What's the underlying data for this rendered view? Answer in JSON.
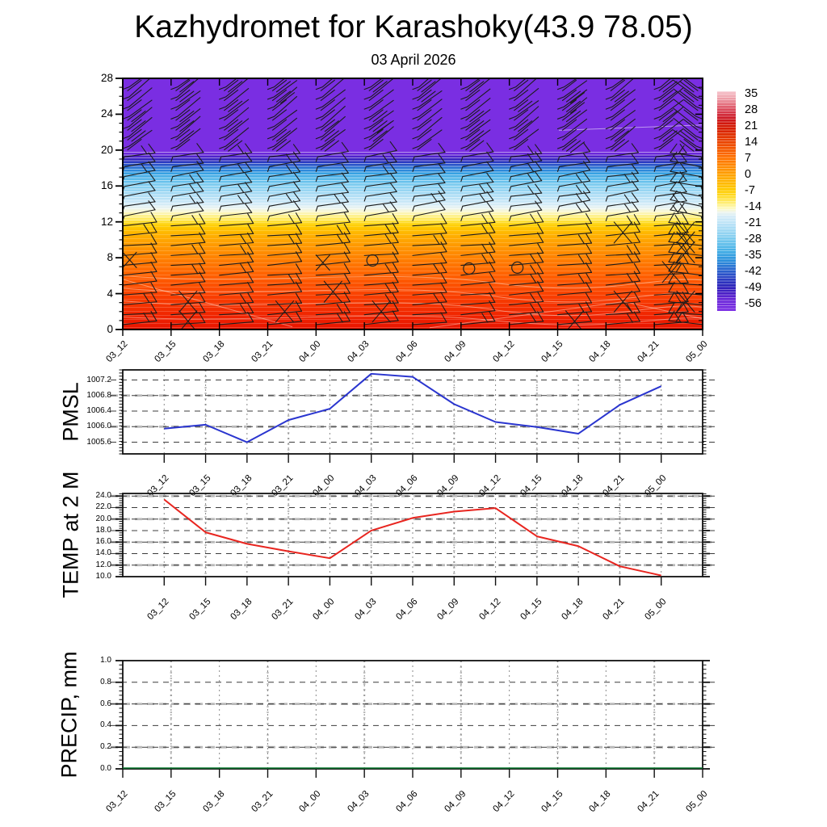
{
  "title": "Kazhydromet for Karashoky(43.9 78.05)",
  "subtitle": "03 April 2026",
  "time_labels": [
    "03_12",
    "03_15",
    "03_18",
    "03_21",
    "04_00",
    "04_03",
    "04_06",
    "04_09",
    "04_12",
    "04_15",
    "04_18",
    "04_21",
    "05_00"
  ],
  "chart_data": [
    {
      "type": "heatmap",
      "name": "temperature-height-cross-section",
      "x_labels": [
        "03_12",
        "03_15",
        "03_18",
        "03_21",
        "04_00",
        "04_03",
        "04_06",
        "04_09",
        "04_12",
        "04_15",
        "04_18",
        "04_21",
        "05_00"
      ],
      "y_ticks": [
        0,
        4,
        8,
        12,
        16,
        20,
        24,
        28
      ],
      "y_range": [
        0,
        28
      ],
      "grid": false,
      "legend_position": "right-colorbar",
      "colorbar_ticks": [
        "35",
        "28",
        "21",
        "14",
        "7",
        "0",
        "-7",
        "-14",
        "-21",
        "-28",
        "-35",
        "-42",
        "-49",
        "-56"
      ],
      "fill_gradient_stops": [
        [
          0,
          "#7a2ee2"
        ],
        [
          28.9,
          "#7a2ee2"
        ],
        [
          30.4,
          "#6426d6"
        ],
        [
          31.8,
          "#3d1fc0"
        ],
        [
          32.9,
          "#2b2cbd"
        ],
        [
          34.3,
          "#2a52c9"
        ],
        [
          36.1,
          "#2b7ed7"
        ],
        [
          37.9,
          "#36a2e2"
        ],
        [
          40,
          "#58b9ea"
        ],
        [
          42.9,
          "#83cef0"
        ],
        [
          46.4,
          "#abdcf5"
        ],
        [
          50,
          "#d2ebf8"
        ],
        [
          51.8,
          "#ecf4ef"
        ],
        [
          53.2,
          "#fbf7c8"
        ],
        [
          55,
          "#fff07e"
        ],
        [
          56.8,
          "#ffe23a"
        ],
        [
          58.9,
          "#ffcc00"
        ],
        [
          61.8,
          "#ffb400"
        ],
        [
          66.1,
          "#ff9c00"
        ],
        [
          71.4,
          "#ff8200"
        ],
        [
          78.6,
          "#ff6000"
        ],
        [
          85.7,
          "#fa4300"
        ],
        [
          92.9,
          "#f22a00"
        ],
        [
          100,
          "#e81300"
        ]
      ],
      "colorbar_gradient_stops": [
        [
          0,
          "#f6c3cb"
        ],
        [
          3,
          "#efa3ad"
        ],
        [
          6,
          "#e4707e"
        ],
        [
          9,
          "#d84052"
        ],
        [
          12,
          "#cd1b28"
        ],
        [
          16,
          "#d31800"
        ],
        [
          20,
          "#e03000"
        ],
        [
          25,
          "#f05000"
        ],
        [
          30,
          "#ff7000"
        ],
        [
          35,
          "#ff8f00"
        ],
        [
          40,
          "#ffae00"
        ],
        [
          45,
          "#ffcb00"
        ],
        [
          48,
          "#ffdd2e"
        ],
        [
          51,
          "#ffef7a"
        ],
        [
          53.5,
          "#fdf9c4"
        ],
        [
          55,
          "#eef5ee"
        ],
        [
          57,
          "#d5ecf8"
        ],
        [
          61,
          "#b4e0f6"
        ],
        [
          65,
          "#90d3f1"
        ],
        [
          69,
          "#67c2ec"
        ],
        [
          73,
          "#41ade5"
        ],
        [
          77,
          "#2b90dc"
        ],
        [
          81,
          "#2a68cf"
        ],
        [
          85,
          "#2b42c4"
        ],
        [
          89,
          "#2b21b9"
        ],
        [
          92,
          "#4a1fc6"
        ],
        [
          95,
          "#6b28d9"
        ],
        [
          100,
          "#7c2fe4"
        ]
      ],
      "wind_barbs": {
        "columns": 13,
        "rows": 25,
        "calm_circles": [
          {
            "col": 5,
            "level": 7.7
          },
          {
            "col": 7,
            "level": 6.8
          },
          {
            "col": 8,
            "level": 6.9
          }
        ],
        "crosses": [
          {
            "col": 0,
            "level": 7.8
          },
          {
            "col": 4,
            "level": 7.5
          }
        ]
      }
    },
    {
      "type": "line",
      "name": "pmsl",
      "ylabel": "PMSL",
      "x": [
        "03_12",
        "03_15",
        "03_18",
        "03_21",
        "04_00",
        "04_03",
        "04_06",
        "04_09",
        "04_12",
        "04_15",
        "04_18",
        "04_21",
        "05_00"
      ],
      "values": [
        1005.95,
        1006.05,
        1005.6,
        1006.17,
        1006.46,
        1007.36,
        1007.28,
        1006.58,
        1006.12,
        1005.99,
        1005.82,
        1006.56,
        1007.04
      ],
      "y_ticks": [
        1005.6,
        1006.0,
        1006.4,
        1006.8,
        1007.2
      ],
      "y_tick_labels": [
        "1005.6",
        "1006.0",
        "1006.4",
        "1006.8",
        "1007.2"
      ],
      "y_range": [
        1005.3,
        1007.46
      ],
      "grid": true,
      "line_color": "#2a35cf"
    },
    {
      "type": "line",
      "name": "temp-2m",
      "ylabel": "TEMP at 2 M",
      "x": [
        "03_12",
        "03_15",
        "03_18",
        "03_21",
        "04_00",
        "04_03",
        "04_06",
        "04_09",
        "04_12",
        "04_15",
        "04_18",
        "04_21",
        "05_00"
      ],
      "values": [
        23.4,
        17.7,
        15.7,
        14.4,
        13.2,
        18.0,
        20.2,
        21.3,
        21.9,
        17.0,
        15.3,
        11.8,
        10.2
      ],
      "y_ticks": [
        10,
        12,
        14,
        16,
        18,
        20,
        22,
        24
      ],
      "y_tick_labels": [
        "10.0",
        "12.0",
        "14.0",
        "16.0",
        "18.0",
        "20.0",
        "22.0",
        "24.0"
      ],
      "y_range": [
        10,
        24.45
      ],
      "grid": true,
      "line_color": "#e8251f"
    },
    {
      "type": "line",
      "name": "precip",
      "ylabel": "PRECIP, mm",
      "x": [
        "03_12",
        "03_15",
        "03_18",
        "03_21",
        "04_00",
        "04_03",
        "04_06",
        "04_09",
        "04_12",
        "04_15",
        "04_18",
        "04_21",
        "05_00"
      ],
      "values": [
        0,
        0,
        0,
        0,
        0,
        0,
        0,
        0,
        0,
        0,
        0,
        0,
        0
      ],
      "y_ticks": [
        0,
        0.2,
        0.4,
        0.6,
        0.8,
        1.0
      ],
      "y_tick_labels": [
        "0.0",
        "0.2",
        "0.4",
        "0.6",
        "0.8",
        "1.0"
      ],
      "y_range": [
        0,
        1
      ],
      "grid": true,
      "line_color": "#0a7a30"
    }
  ]
}
